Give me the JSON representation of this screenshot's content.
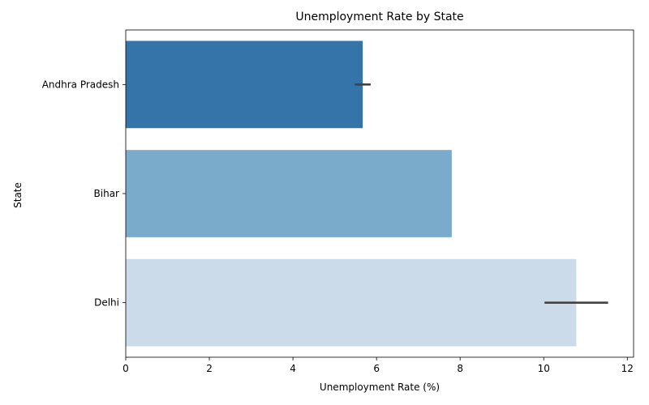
{
  "chart_data": {
    "type": "bar",
    "orientation": "horizontal",
    "title": "Unemployment Rate by State",
    "xlabel": "Unemployment Rate (%)",
    "ylabel": "State",
    "xlim": [
      0,
      12.15
    ],
    "x_ticks": [
      0,
      2,
      4,
      6,
      8,
      10,
      12
    ],
    "categories": [
      "Andhra Pradesh",
      "Bihar",
      "Delhi"
    ],
    "values": [
      5.67,
      7.8,
      10.78
    ],
    "error_intervals": [
      [
        5.48,
        5.86
      ],
      null,
      [
        10.02,
        11.54
      ]
    ],
    "colors": [
      "#3574a9",
      "#7aabcb",
      "#cbdbea"
    ],
    "error_color": "#424242",
    "grid": false,
    "legend": "none"
  }
}
